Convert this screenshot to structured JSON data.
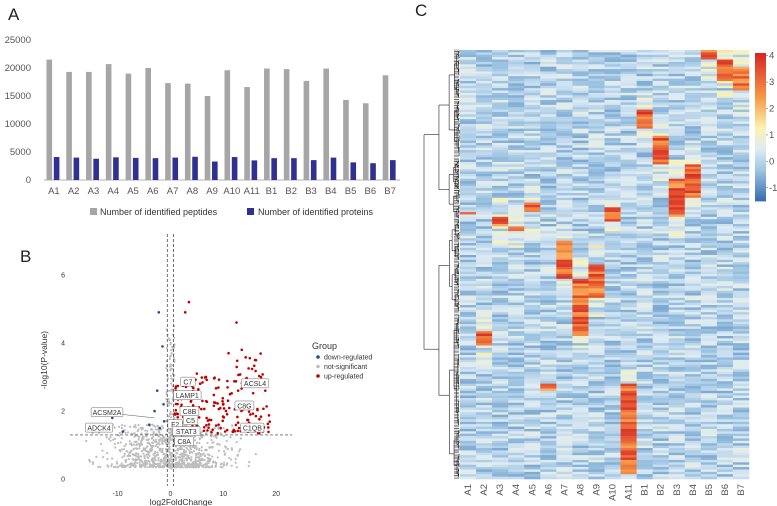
{
  "panels": {
    "a": "A",
    "b": "B",
    "c": "C"
  },
  "chart_data": [
    {
      "id": "A",
      "type": "bar",
      "categories": [
        "A1",
        "A2",
        "A3",
        "A4",
        "A5",
        "A6",
        "A7",
        "A8",
        "A9",
        "A10",
        "A11",
        "B1",
        "B2",
        "B3",
        "B4",
        "B5",
        "B6",
        "B7"
      ],
      "series": [
        {
          "name": "Number of identified peptides",
          "color": "#a6a6a6",
          "values": [
            21500,
            19300,
            19300,
            20700,
            19000,
            20000,
            17300,
            17200,
            15000,
            19600,
            16600,
            19900,
            19800,
            17700,
            19900,
            14300,
            13700,
            18700
          ]
        },
        {
          "name": "Number of identified proteins",
          "color": "#2e3192",
          "values": [
            4100,
            4000,
            3800,
            4050,
            3950,
            3900,
            4000,
            4150,
            3300,
            4100,
            3500,
            3900,
            3900,
            3550,
            4000,
            3150,
            3000,
            3550
          ]
        }
      ],
      "yticks": [
        0,
        5000,
        10000,
        15000,
        20000,
        25000
      ],
      "ylim": [
        0,
        25000
      ],
      "legend": [
        "Number of identified peptides",
        "Number of identified proteins"
      ]
    },
    {
      "id": "B",
      "type": "scatter",
      "xlabel": "log2FoldChange",
      "ylabel": "-log10(P-value)",
      "xticks": [
        -10,
        0,
        10,
        20
      ],
      "yticks": [
        0,
        2,
        4,
        6
      ],
      "xlim": [
        -19,
        23
      ],
      "ylim": [
        -0.2,
        7.2
      ],
      "threshold_y": 1.3,
      "threshold_x": [
        -0.6,
        0.6
      ],
      "legend_title": "Group",
      "groups": [
        {
          "name": "down-regulated",
          "color": "#1f4e8c"
        },
        {
          "name": "not-significant",
          "color": "#bdbdbd"
        },
        {
          "name": "up-regulated",
          "color": "#c00000"
        }
      ],
      "labels": [
        {
          "text": "ACSM2A",
          "x": -12,
          "y": 1.95,
          "px": -3,
          "py": 1.8
        },
        {
          "text": "ADCK4",
          "x": -13.5,
          "y": 1.5,
          "px": -11,
          "py": 1.5
        },
        {
          "text": "C7",
          "x": 3.3,
          "y": 2.85,
          "px": 2,
          "py": 2.9
        },
        {
          "text": "LAMP1",
          "x": 3.2,
          "y": 2.45,
          "px": 2,
          "py": 2.3
        },
        {
          "text": "C8B",
          "x": 3.6,
          "y": 1.98,
          "px": 2.5,
          "py": 1.8
        },
        {
          "text": "C5",
          "x": 3.8,
          "y": 1.72,
          "px": 3,
          "py": 1.65
        },
        {
          "text": "F2",
          "x": 0.9,
          "y": 1.6,
          "px": 1.5,
          "py": 1.55
        },
        {
          "text": "STAT3",
          "x": 3.0,
          "y": 1.4,
          "px": 2,
          "py": 1.5
        },
        {
          "text": "C8A",
          "x": 2.6,
          "y": 1.1,
          "px": 2,
          "py": 1.3
        },
        {
          "text": "ACSL4",
          "x": 16,
          "y": 2.8,
          "px": 14.5,
          "py": 2.7
        },
        {
          "text": "C8G",
          "x": 14,
          "y": 2.15,
          "px": 12.5,
          "py": 2.2
        },
        {
          "text": "C1QB",
          "x": 15.5,
          "y": 1.5,
          "px": 14,
          "py": 1.5
        }
      ]
    },
    {
      "id": "C",
      "type": "heatmap",
      "columns": [
        "A1",
        "A2",
        "A3",
        "A4",
        "A5",
        "A6",
        "A7",
        "A8",
        "A9",
        "A10",
        "A11",
        "B1",
        "B2",
        "B3",
        "B4",
        "B5",
        "B6",
        "B7"
      ],
      "colorbar_ticks": [
        -1,
        0,
        1,
        2,
        3,
        4
      ],
      "vmin": -1.5,
      "vmax": 4.1
    }
  ]
}
